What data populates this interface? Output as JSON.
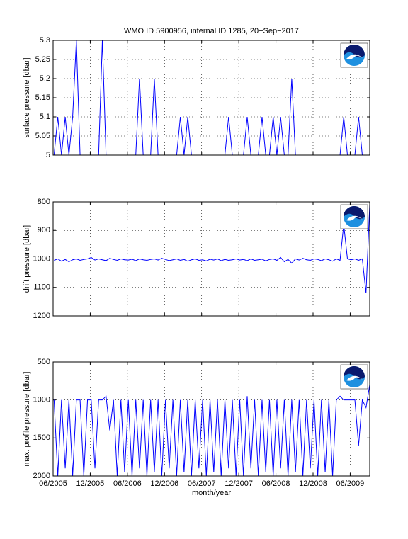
{
  "chart_data": [
    {
      "type": "line",
      "title": "WMO ID 5900956, internal ID 1285, 20−Sep−2017",
      "ylabel": "surface pressure [dbar]",
      "color": "#0000ff",
      "grid": true,
      "y_direction": "normal",
      "xlim": [
        2005.417,
        2009.68
      ],
      "xticks": [
        2005.417,
        2005.917,
        2006.417,
        2006.917,
        2007.417,
        2007.917,
        2008.417,
        2008.917,
        2009.417
      ],
      "ylim": [
        5,
        5.3
      ],
      "yticks": [
        5,
        5.05,
        5.1,
        5.15,
        5.2,
        5.25,
        5.3
      ],
      "x": [
        2005.43,
        2005.48,
        2005.53,
        2005.58,
        2005.63,
        2005.68,
        2005.73,
        2005.78,
        2005.83,
        2005.88,
        2005.93,
        2005.98,
        2006.03,
        2006.08,
        2006.13,
        2006.18,
        2006.23,
        2006.28,
        2006.33,
        2006.38,
        2006.43,
        2006.48,
        2006.53,
        2006.58,
        2006.63,
        2006.68,
        2006.73,
        2006.78,
        2006.83,
        2006.88,
        2006.93,
        2006.98,
        2007.03,
        2007.08,
        2007.13,
        2007.18,
        2007.23,
        2007.28,
        2007.33,
        2007.38,
        2007.43,
        2007.48,
        2007.53,
        2007.58,
        2007.63,
        2007.68,
        2007.73,
        2007.78,
        2007.83,
        2007.88,
        2007.93,
        2007.98,
        2008.03,
        2008.08,
        2008.13,
        2008.18,
        2008.23,
        2008.28,
        2008.33,
        2008.38,
        2008.43,
        2008.48,
        2008.53,
        2008.58,
        2008.63,
        2008.68,
        2008.73,
        2008.78,
        2008.83,
        2008.88,
        2008.93,
        2008.98,
        2009.03,
        2009.08,
        2009.13,
        2009.18,
        2009.23,
        2009.28,
        2009.33,
        2009.38,
        2009.43,
        2009.48,
        2009.53,
        2009.58,
        2009.63,
        2009.68
      ],
      "values": [
        5,
        5.1,
        5,
        5.1,
        5,
        5.1,
        5.3,
        5,
        5,
        5,
        5,
        5,
        5,
        5.3,
        5,
        5,
        5,
        5,
        5,
        5,
        5,
        5,
        5,
        5.2,
        5,
        5,
        5,
        5.2,
        5,
        5,
        5,
        5,
        5,
        5,
        5.1,
        5,
        5.1,
        5,
        5,
        5,
        5,
        5,
        5,
        5,
        5,
        5,
        5,
        5.1,
        5,
        5,
        5,
        5,
        5.1,
        5,
        5,
        5,
        5.1,
        5,
        5,
        5.1,
        5,
        5.1,
        5,
        5,
        5.2,
        5,
        5,
        5,
        5,
        5,
        5,
        5,
        5,
        5,
        5,
        5,
        5,
        5,
        5.1,
        5,
        5,
        5,
        5.1,
        5,
        5,
        5
      ]
    },
    {
      "type": "line",
      "ylabel": "drift pressure [dbar]",
      "color": "#0000ff",
      "grid": true,
      "y_direction": "reverse",
      "xlim": [
        2005.417,
        2009.68
      ],
      "xticks": [
        2005.417,
        2005.917,
        2006.417,
        2006.917,
        2007.417,
        2007.917,
        2008.417,
        2008.917,
        2009.417
      ],
      "ylim": [
        800,
        1200
      ],
      "yticks": [
        800,
        900,
        1000,
        1100,
        1200
      ],
      "x": [
        2005.43,
        2005.48,
        2005.53,
        2005.58,
        2005.63,
        2005.68,
        2005.73,
        2005.78,
        2005.83,
        2005.88,
        2005.93,
        2005.98,
        2006.03,
        2006.08,
        2006.13,
        2006.18,
        2006.23,
        2006.28,
        2006.33,
        2006.38,
        2006.43,
        2006.48,
        2006.53,
        2006.58,
        2006.63,
        2006.68,
        2006.73,
        2006.78,
        2006.83,
        2006.88,
        2006.93,
        2006.98,
        2007.03,
        2007.08,
        2007.13,
        2007.18,
        2007.23,
        2007.28,
        2007.33,
        2007.38,
        2007.43,
        2007.48,
        2007.53,
        2007.58,
        2007.63,
        2007.68,
        2007.73,
        2007.78,
        2007.83,
        2007.88,
        2007.93,
        2007.98,
        2008.03,
        2008.08,
        2008.13,
        2008.18,
        2008.23,
        2008.28,
        2008.33,
        2008.38,
        2008.43,
        2008.48,
        2008.53,
        2008.58,
        2008.63,
        2008.68,
        2008.73,
        2008.78,
        2008.83,
        2008.88,
        2008.93,
        2008.98,
        2009.03,
        2009.08,
        2009.13,
        2009.18,
        2009.23,
        2009.28,
        2009.33,
        2009.38,
        2009.43,
        2009.48,
        2009.53,
        2009.58,
        2009.63,
        2009.68
      ],
      "values": [
        1005,
        1000,
        1008,
        1002,
        1010,
        1003,
        1000,
        1005,
        1002,
        1000,
        995,
        1004,
        1000,
        1003,
        1006,
        998,
        1002,
        1005,
        1000,
        1003,
        1004,
        1001,
        1006,
        1000,
        1003,
        1005,
        1002,
        1000,
        1004,
        998,
        1002,
        1006,
        1003,
        1000,
        1005,
        1002,
        1008,
        1003,
        1000,
        1005,
        1003,
        1007,
        1001,
        1004,
        1000,
        1006,
        1002,
        1005,
        1003,
        1000,
        1004,
        1002,
        1006,
        1000,
        1005,
        1003,
        1001,
        1007,
        1002,
        1000,
        1005,
        995,
        1010,
        1002,
        1015,
        1000,
        1004,
        998,
        1003,
        1005,
        1000,
        1002,
        1006,
        1000,
        1003,
        1008,
        1000,
        1005,
        880,
        1000,
        1003,
        1000,
        1005,
        1000,
        1120,
        810
      ]
    },
    {
      "type": "line",
      "ylabel": "max. profile pressure [dbar]",
      "xlabel": "month/year",
      "color": "#0000ff",
      "grid": true,
      "y_direction": "reverse",
      "xlim": [
        2005.417,
        2009.68
      ],
      "xticks": [
        {
          "value": 2005.417,
          "label": "06/2005"
        },
        {
          "value": 2005.917,
          "label": "12/2005"
        },
        {
          "value": 2006.417,
          "label": "06/2006"
        },
        {
          "value": 2006.917,
          "label": "12/2006"
        },
        {
          "value": 2007.417,
          "label": "06/2007"
        },
        {
          "value": 2007.917,
          "label": "12/2007"
        },
        {
          "value": 2008.417,
          "label": "06/2008"
        },
        {
          "value": 2008.917,
          "label": "12/2008"
        },
        {
          "value": 2009.417,
          "label": "06/2009"
        }
      ],
      "ylim": [
        500,
        2000
      ],
      "yticks": [
        500,
        1000,
        1500,
        2000
      ],
      "x": [
        2005.43,
        2005.48,
        2005.53,
        2005.58,
        2005.63,
        2005.68,
        2005.73,
        2005.78,
        2005.83,
        2005.88,
        2005.93,
        2005.98,
        2006.03,
        2006.08,
        2006.13,
        2006.18,
        2006.23,
        2006.28,
        2006.33,
        2006.38,
        2006.43,
        2006.48,
        2006.53,
        2006.58,
        2006.63,
        2006.68,
        2006.73,
        2006.78,
        2006.83,
        2006.88,
        2006.93,
        2006.98,
        2007.03,
        2007.08,
        2007.13,
        2007.18,
        2007.23,
        2007.28,
        2007.33,
        2007.38,
        2007.43,
        2007.48,
        2007.53,
        2007.58,
        2007.63,
        2007.68,
        2007.73,
        2007.78,
        2007.83,
        2007.88,
        2007.93,
        2007.98,
        2008.03,
        2008.08,
        2008.13,
        2008.18,
        2008.23,
        2008.28,
        2008.33,
        2008.38,
        2008.43,
        2008.48,
        2008.53,
        2008.58,
        2008.63,
        2008.68,
        2008.73,
        2008.78,
        2008.83,
        2008.88,
        2008.93,
        2008.98,
        2009.03,
        2009.08,
        2009.13,
        2009.18,
        2009.23,
        2009.28,
        2009.33,
        2009.38,
        2009.43,
        2009.48,
        2009.53,
        2009.58,
        2009.63,
        2009.68
      ],
      "values": [
        1000,
        2000,
        1000,
        1900,
        1000,
        2000,
        1000,
        1000,
        2000,
        1000,
        1000,
        1900,
        1000,
        1000,
        950,
        1400,
        1000,
        2000,
        1000,
        1950,
        1000,
        2000,
        1000,
        1900,
        1000,
        2000,
        1000,
        1950,
        1000,
        2000,
        1000,
        1900,
        1000,
        2000,
        1000,
        1950,
        1000,
        2000,
        1000,
        1900,
        1000,
        2000,
        1000,
        1950,
        1000,
        2000,
        1000,
        1900,
        1000,
        2000,
        1000,
        2000,
        950,
        1900,
        1000,
        2000,
        1000,
        1950,
        1000,
        2000,
        1000,
        1900,
        1000,
        2000,
        1000,
        1950,
        1000,
        2000,
        1000,
        1900,
        1000,
        2000,
        1000,
        1950,
        1000,
        2000,
        1000,
        950,
        1000,
        1000,
        1000,
        1000,
        1600,
        1000,
        1100,
        800
      ]
    }
  ]
}
